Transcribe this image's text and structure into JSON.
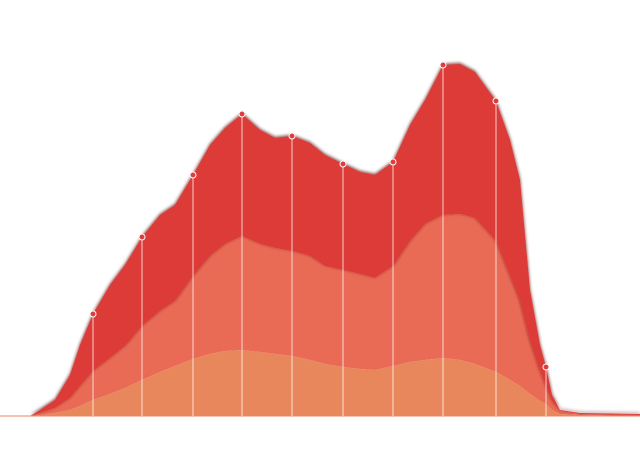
{
  "chart_data": {
    "type": "stacked_area",
    "x": [
      30,
      40,
      55,
      70,
      80,
      93,
      110,
      125,
      142,
      160,
      175,
      193,
      210,
      225,
      242,
      260,
      275,
      292,
      310,
      325,
      343,
      360,
      375,
      393,
      410,
      425,
      443,
      460,
      475,
      496,
      510,
      520,
      530,
      540,
      546,
      552,
      560,
      580,
      640
    ],
    "xlim": [
      0,
      640
    ],
    "ylim": [
      0,
      360
    ],
    "series": [
      {
        "color": "#e9875c",
        "values": [
          0,
          1,
          3,
          6,
          10,
          16,
          22,
          28,
          36,
          44,
          50,
          57,
          62,
          65,
          66,
          64,
          62,
          60,
          56,
          52,
          49,
          47,
          46,
          50,
          54,
          56,
          58,
          56,
          52,
          44,
          36,
          30,
          22,
          15,
          12,
          6,
          2,
          1,
          0
        ]
      },
      {
        "color": "#ea6b55",
        "values": [
          0,
          2,
          5,
          12,
          20,
          29,
          36,
          42,
          54,
          61,
          65,
          83,
          98,
          107,
          114,
          108,
          106,
          105,
          104,
          98,
          97,
          95,
          92,
          100,
          121,
          136,
          143,
          146,
          146,
          131,
          104,
          85,
          53,
          30,
          18,
          9,
          3,
          1,
          1
        ]
      },
      {
        "color": "#dd3b37",
        "values": [
          0,
          3,
          8,
          23,
          41,
          57,
          73,
          81,
          89,
          96,
          96,
          101,
          111,
          116,
          122,
          114,
          110,
          115,
          113,
          111,
          106,
          102,
          103,
          104,
          116,
          124,
          150,
          150,
          146,
          140,
          136,
          121,
          51,
          26,
          19,
          6,
          1,
          1,
          1
        ]
      }
    ],
    "marker_x": [
      93,
      142,
      193,
      242,
      292,
      343,
      393,
      443,
      496,
      546
    ],
    "marker_color": "#e23b3b"
  }
}
